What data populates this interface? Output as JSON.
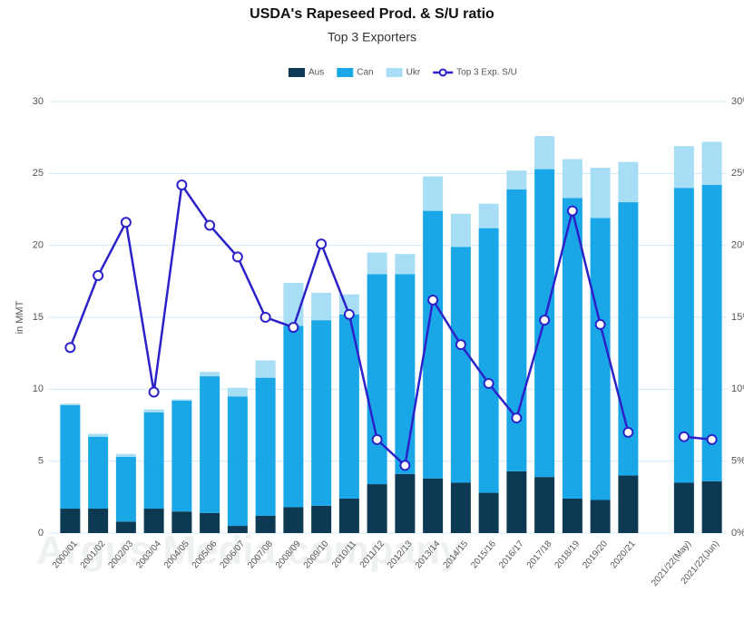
{
  "chart_data": {
    "type": "stacked_bar_line",
    "title": "USDA's Rapeseed Prod. & S/U ratio",
    "subtitle": "Top 3 Exporters",
    "y_label": "in MMT",
    "watermark": "Argus Media company",
    "categories": [
      "2000/01",
      "2001/02",
      "2002/03",
      "2003/04",
      "2004/05",
      "2005/06",
      "2006/07",
      "2007/08",
      "2008/09",
      "2009/10",
      "2010/11",
      "2011/12",
      "2012/13",
      "2013/14",
      "2014/15",
      "2015/16",
      "2016/17",
      "2017/18",
      "2018/19",
      "2019/20",
      "2020/21",
      null,
      "2021/22(May)",
      "2021/22(Jun)"
    ],
    "series": [
      {
        "name": "Aus",
        "color": "#0d3a52",
        "kind": "bar",
        "values": [
          1.7,
          1.7,
          0.8,
          1.7,
          1.5,
          1.4,
          0.5,
          1.2,
          1.8,
          1.9,
          2.4,
          3.4,
          4.1,
          3.8,
          3.5,
          2.8,
          4.3,
          3.9,
          2.4,
          2.3,
          4.0,
          null,
          3.5,
          3.6
        ]
      },
      {
        "name": "Can",
        "color": "#1aa7e8",
        "kind": "bar",
        "values": [
          7.2,
          5.0,
          4.5,
          6.7,
          7.7,
          9.5,
          9.0,
          9.6,
          12.6,
          12.9,
          12.8,
          14.6,
          13.9,
          18.6,
          16.4,
          18.4,
          19.6,
          21.4,
          20.9,
          19.6,
          19.0,
          null,
          20.5,
          20.6
        ]
      },
      {
        "name": "Ukr",
        "color": "#a8def5",
        "kind": "bar",
        "values": [
          0.1,
          0.2,
          0.2,
          0.2,
          0.1,
          0.3,
          0.6,
          1.2,
          3.0,
          1.9,
          1.4,
          1.5,
          1.4,
          2.4,
          2.3,
          1.7,
          1.3,
          2.3,
          2.7,
          3.5,
          2.8,
          null,
          2.9,
          3.0
        ]
      },
      {
        "name": "Top 3 Exp. S/U",
        "color": "#2b22c9",
        "kind": "line",
        "axis": "y2",
        "values": [
          12.9,
          17.9,
          21.6,
          9.8,
          24.2,
          21.4,
          19.2,
          15.0,
          14.3,
          20.1,
          15.2,
          6.5,
          4.7,
          16.2,
          13.1,
          10.4,
          8.0,
          14.8,
          22.4,
          14.5,
          7.0,
          null,
          6.7,
          6.5
        ]
      }
    ],
    "ylim": [
      0,
      30
    ],
    "yticks": [
      0,
      5,
      10,
      15,
      20,
      25,
      30
    ],
    "y2lim": [
      0,
      30
    ],
    "y2ticks": [
      {
        "value": 0,
        "label": "0%"
      },
      {
        "value": 5,
        "label": "5%"
      },
      {
        "value": 10,
        "label": "10%"
      },
      {
        "value": 15,
        "label": "15%"
      },
      {
        "value": 20,
        "label": "20%"
      },
      {
        "value": 25,
        "label": "25%"
      },
      {
        "value": 30,
        "label": "30%"
      }
    ],
    "grid": true,
    "legend": "top"
  }
}
